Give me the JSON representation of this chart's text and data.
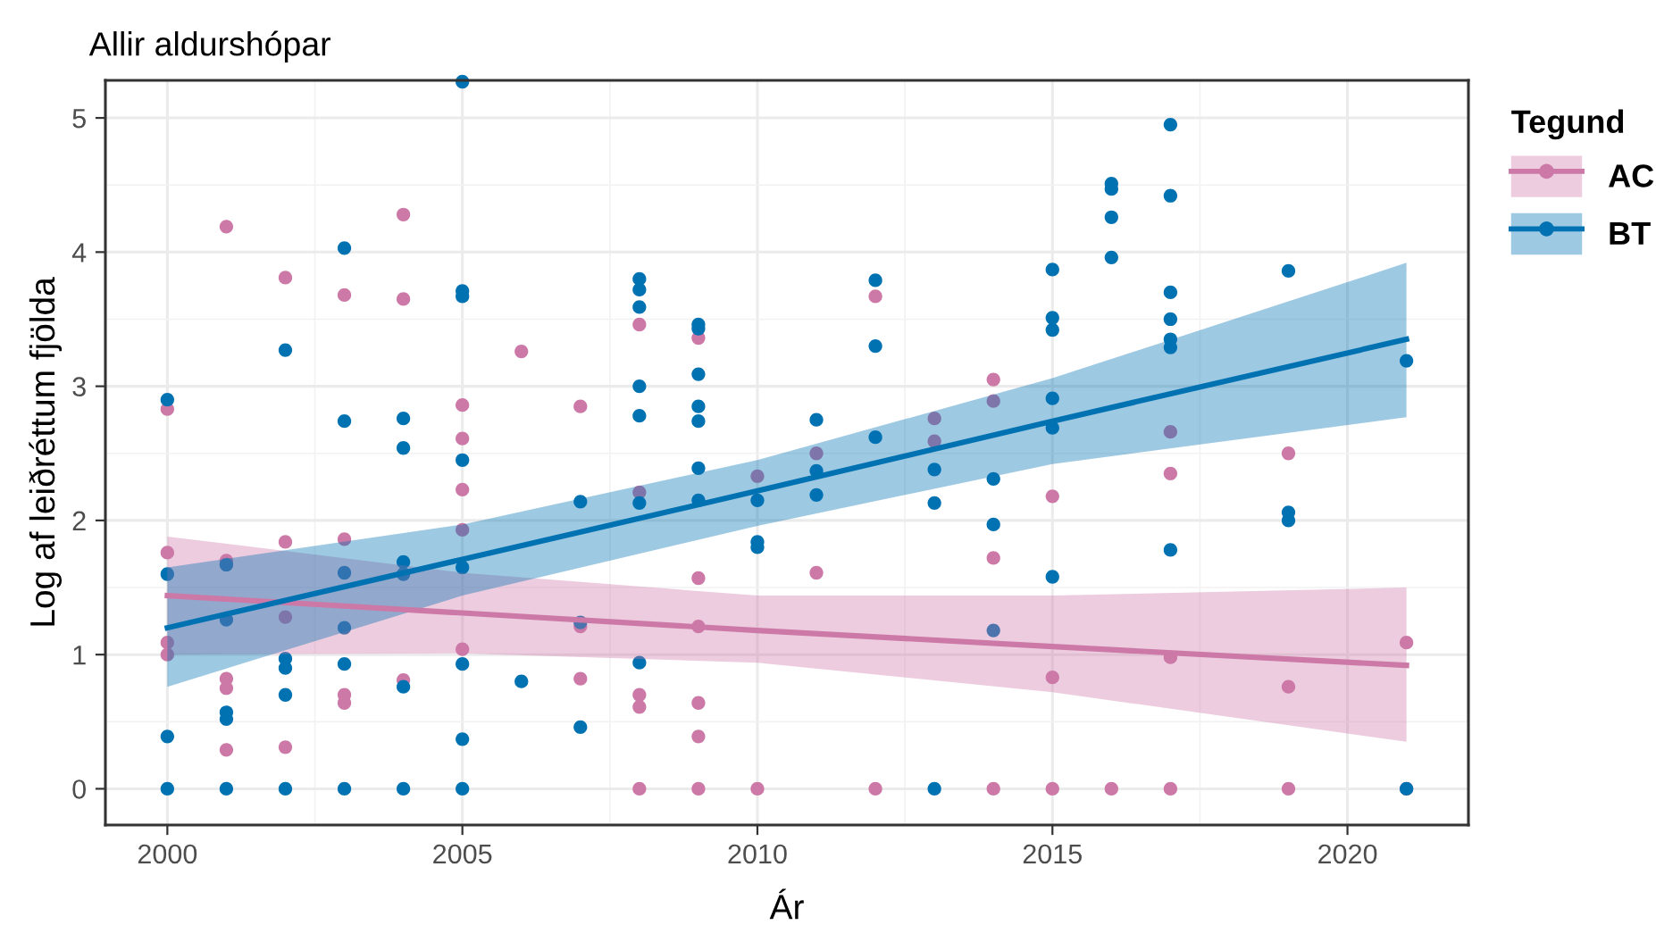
{
  "chart_data": {
    "type": "scatter",
    "title": "Allir aldurshópar",
    "xlabel": "Ár",
    "ylabel": "Log af leiðréttum fjölda",
    "legend_title": "Tegund",
    "legend": "right",
    "grid": true,
    "marker": "circle",
    "xlim": [
      1998.95,
      2022.05
    ],
    "xticks": [
      2000,
      2005,
      2010,
      2015,
      2020
    ],
    "ylim": [
      -0.27,
      5.28
    ],
    "yticks": [
      0,
      1,
      2,
      3,
      4,
      5
    ],
    "series": [
      {
        "name": "AC",
        "color": "#cc79a7",
        "x": [
          2000,
          2000,
          2000,
          2000,
          2001,
          2001,
          2001,
          2001,
          2001,
          2002,
          2002,
          2002,
          2002,
          2003,
          2003,
          2003,
          2003,
          2004,
          2004,
          2004,
          2005,
          2005,
          2005,
          2005,
          2005,
          2006,
          2007,
          2007,
          2007,
          2008,
          2008,
          2008,
          2008,
          2008,
          2009,
          2009,
          2009,
          2009,
          2009,
          2009,
          2010,
          2010,
          2011,
          2011,
          2012,
          2012,
          2013,
          2013,
          2014,
          2014,
          2014,
          2014,
          2015,
          2015,
          2015,
          2016,
          2017,
          2017,
          2017,
          2017,
          2019,
          2019,
          2019,
          2021,
          2021
        ],
        "values": [
          2.83,
          1.76,
          1.09,
          1.0,
          4.19,
          1.7,
          0.82,
          0.75,
          0.29,
          3.81,
          1.84,
          1.28,
          0.31,
          3.68,
          1.86,
          0.7,
          0.64,
          4.28,
          3.65,
          0.81,
          2.86,
          2.61,
          2.23,
          1.93,
          1.04,
          3.26,
          2.85,
          1.21,
          0.82,
          3.46,
          2.21,
          0.7,
          0.61,
          0,
          3.36,
          1.57,
          1.21,
          0.64,
          0.39,
          0,
          2.33,
          0,
          2.5,
          1.61,
          3.67,
          0,
          2.76,
          2.59,
          3.05,
          2.89,
          1.72,
          0,
          2.18,
          0.83,
          0,
          0,
          2.66,
          2.35,
          0.98,
          0,
          2.5,
          0.76,
          0,
          1.09,
          0
        ]
      },
      {
        "name": "BT",
        "color": "#0072b2",
        "x": [
          2000,
          2000,
          2000,
          2000,
          2001,
          2001,
          2001,
          2001,
          2001,
          2002,
          2002,
          2002,
          2002,
          2002,
          2003,
          2003,
          2003,
          2003,
          2003,
          2003,
          2004,
          2004,
          2004,
          2004,
          2004,
          2004,
          2005,
          2005,
          2005,
          2005,
          2005,
          2005,
          2005,
          2005,
          2006,
          2007,
          2007,
          2007,
          2008,
          2008,
          2008,
          2008,
          2008,
          2008,
          2008,
          2009,
          2009,
          2009,
          2009,
          2009,
          2009,
          2009,
          2010,
          2010,
          2010,
          2011,
          2011,
          2011,
          2012,
          2012,
          2012,
          2013,
          2013,
          2013,
          2014,
          2014,
          2014,
          2015,
          2015,
          2015,
          2015,
          2015,
          2015,
          2016,
          2016,
          2016,
          2016,
          2017,
          2017,
          2017,
          2017,
          2017,
          2017,
          2017,
          2019,
          2019,
          2019,
          2021,
          2021
        ],
        "values": [
          2.9,
          1.6,
          0.39,
          0,
          1.67,
          1.26,
          0.57,
          0.52,
          0,
          3.27,
          0.97,
          0.9,
          0.7,
          0,
          4.03,
          2.74,
          1.61,
          1.2,
          0.93,
          0,
          2.76,
          2.54,
          1.69,
          1.6,
          0.76,
          0,
          5.27,
          3.71,
          3.67,
          2.45,
          1.65,
          0.93,
          0.37,
          0,
          0.8,
          2.14,
          1.24,
          0.46,
          3.8,
          3.72,
          3.59,
          3.0,
          2.78,
          2.13,
          0.94,
          3.46,
          3.43,
          3.09,
          2.85,
          2.74,
          2.39,
          2.15,
          2.15,
          1.84,
          1.8,
          2.75,
          2.37,
          2.19,
          3.79,
          3.3,
          2.62,
          2.38,
          2.13,
          0,
          2.31,
          1.97,
          1.18,
          3.87,
          3.51,
          3.42,
          2.91,
          2.69,
          1.58,
          4.51,
          4.47,
          4.26,
          3.96,
          4.95,
          4.42,
          3.7,
          3.5,
          3.35,
          3.29,
          1.78,
          3.86,
          2.06,
          2.0,
          3.19,
          0
        ]
      },
      {
        "type": "line",
        "marker": "none",
        "color": "#cc79a7",
        "x": [
          2000,
          2005,
          2010,
          2015,
          2021
        ],
        "values": [
          1.44,
          1.31,
          1.18,
          1.06,
          0.92
        ],
        "lower": [
          1.0,
          1.01,
          0.94,
          0.72,
          0.35
        ],
        "upper": [
          1.88,
          1.61,
          1.44,
          1.44,
          1.5
        ]
      },
      {
        "type": "line",
        "marker": "none",
        "color": "#0072b2",
        "x": [
          2000,
          2005,
          2010,
          2015,
          2021
        ],
        "values": [
          1.2,
          1.71,
          2.22,
          2.74,
          3.35
        ],
        "lower": [
          0.76,
          1.44,
          1.96,
          2.42,
          2.77
        ],
        "upper": [
          1.65,
          1.97,
          2.45,
          3.06,
          3.92
        ]
      }
    ]
  }
}
